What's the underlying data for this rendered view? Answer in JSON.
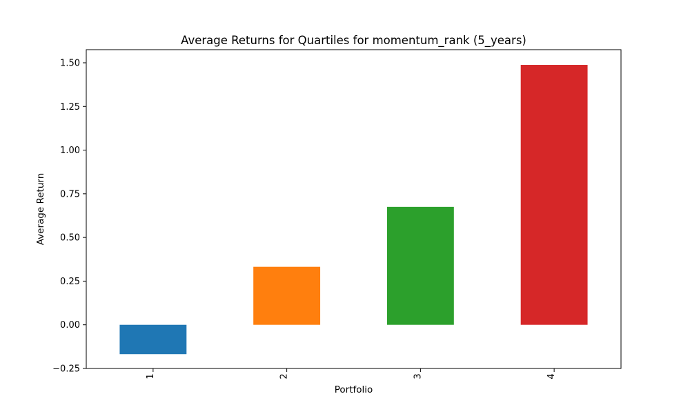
{
  "chart_data": {
    "type": "bar",
    "title": "Average Returns for Quartiles for momentum_rank (5_years)",
    "xlabel": "Portfolio",
    "ylabel": "Average Return",
    "categories": [
      "1",
      "2",
      "3",
      "4"
    ],
    "values": [
      -0.168,
      0.332,
      0.675,
      1.488
    ],
    "colors": [
      "#1f77b4",
      "#ff7f0e",
      "#2ca02c",
      "#d62728"
    ],
    "ylim": [
      -0.25,
      1.575
    ],
    "yticks": [
      -0.25,
      0.0,
      0.25,
      0.5,
      0.75,
      1.0,
      1.25,
      1.5
    ],
    "ytick_labels": [
      "−0.25",
      "0.00",
      "0.25",
      "0.50",
      "0.75",
      "1.00",
      "1.25",
      "1.50"
    ],
    "grid": false,
    "legend": "none",
    "x_tick_rotation": "vertical"
  }
}
